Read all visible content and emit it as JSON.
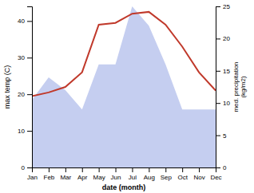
{
  "chart_data": {
    "type": "line",
    "categories": [
      "Jan",
      "Feb",
      "Mar",
      "Apr",
      "May",
      "Jun",
      "Jul",
      "Aug",
      "Sep",
      "Oct",
      "Nov",
      "Dec"
    ],
    "xlabel": "date (month)",
    "ylabel": "max temp (C)",
    "y2label": "med. precipitation\n(kg/m2)",
    "ylim": [
      0,
      44
    ],
    "yticks": [
      0,
      10,
      20,
      30,
      40
    ],
    "y2lim": [
      0,
      25
    ],
    "y2ticks": [
      0,
      5,
      10,
      15,
      20,
      25
    ],
    "series": [
      {
        "type": "area",
        "axis": "y2",
        "color": "#c5cef0",
        "values": [
          10.5,
          14.0,
          12.0,
          9.0,
          16.0,
          16.0,
          25.0,
          22.0,
          16.0,
          9.0,
          9.0,
          9.0
        ]
      },
      {
        "type": "line",
        "color": "#c0392b",
        "values": [
          19.5,
          20.5,
          22.0,
          26.0,
          39.0,
          39.5,
          42.0,
          42.5,
          39.0,
          33.0,
          26.0,
          21.0
        ]
      }
    ]
  }
}
